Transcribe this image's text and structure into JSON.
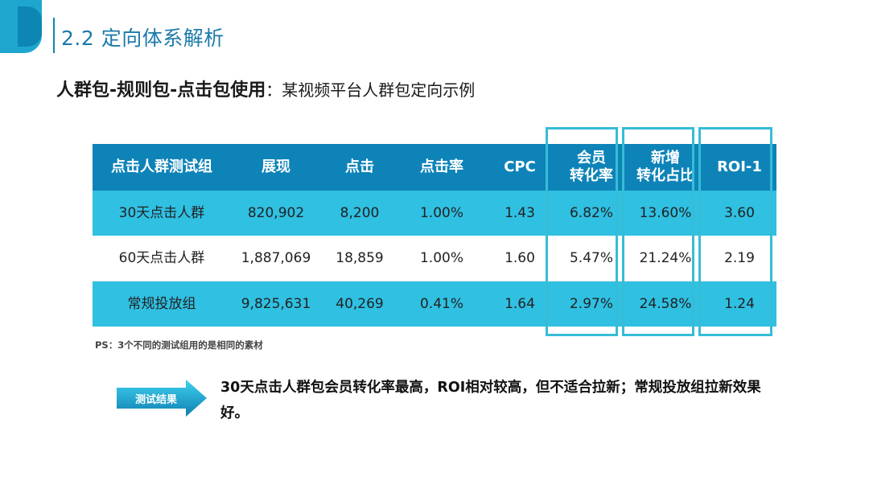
{
  "section_title": "2.2 定向体系解析",
  "subtitle": {
    "bold": "人群包-规则包-点击包使用",
    "rest": "：某视频平台人群包定向示例"
  },
  "table": {
    "headers": [
      "点击人群测试组",
      "展现",
      "点击",
      "点击率",
      "CPC",
      "会员\n转化率",
      "新增\n转化占比",
      "ROI-1"
    ],
    "rows": [
      [
        "30天点击人群",
        "820,902",
        "8,200",
        "1.00%",
        "1.43",
        "6.82%",
        "13.60%",
        "3.60"
      ],
      [
        "60天点击人群",
        "1,887,069",
        "18,859",
        "1.00%",
        "1.60",
        "5.47%",
        "21.24%",
        "2.19"
      ],
      [
        "常规投放组",
        "9,825,631",
        "40,269",
        "0.41%",
        "1.64",
        "2.97%",
        "24.58%",
        "1.24"
      ]
    ]
  },
  "ps_note": "PS：3个不同的测试组用的是相同的素材",
  "result": {
    "label": "测试结果",
    "text": "30天点击人群包会员转化率最高，ROI相对较高，但不适合拉新；常规投放组拉新效果好。"
  },
  "colors": {
    "header_bg": "#0e83b8",
    "row_highlight": "#2fc0e2",
    "box_border": "#37bcd6",
    "title": "#1b7aaa"
  }
}
